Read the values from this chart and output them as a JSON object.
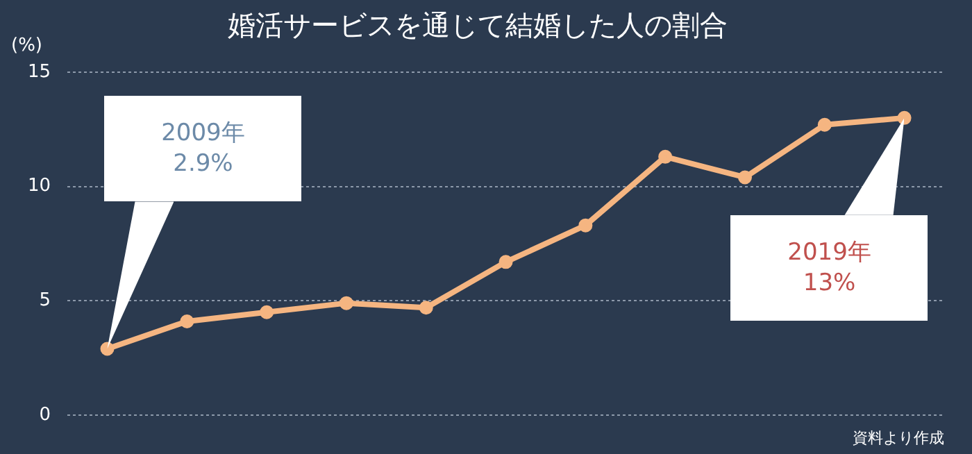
{
  "chart_data": {
    "type": "line",
    "title": "婚活サービスを通じて結婚した人の割合",
    "ylabel": "(%)",
    "categories": [
      null,
      null,
      null,
      null,
      null,
      null,
      null,
      null,
      null,
      null,
      null
    ],
    "series": [
      {
        "color": "#f5b581",
        "values": [
          2.9,
          4.1,
          4.5,
          4.9,
          4.7,
          6.7,
          8.3,
          11.3,
          10.4,
          12.7,
          13.0
        ]
      }
    ],
    "ylim": [
      0,
      15
    ],
    "yticks": [
      0,
      5,
      10,
      15
    ],
    "grid": "y",
    "legend": false,
    "marker": "circle",
    "line_style": "solid",
    "tick_labels": "y",
    "annotations": [
      "2009年\n2.9%",
      "2019年\n13%",
      "資料より作成"
    ]
  }
}
